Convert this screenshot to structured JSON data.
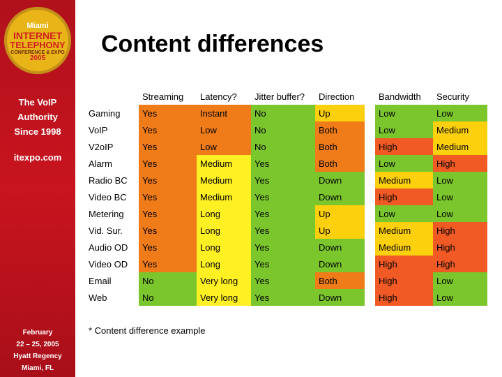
{
  "sidebar": {
    "logo": {
      "lines": [
        "Miami",
        "INTERNET",
        "TELEPHONY",
        "CONFERENCE & EXPO",
        "2005"
      ]
    },
    "tagline": [
      "The VoIP",
      "Authority",
      "Since 1998"
    ],
    "url": "itexpo.com",
    "event": [
      "February",
      "22 – 25, 2005",
      "Hyatt Regency",
      "Miami, FL"
    ]
  },
  "title": "Content differences",
  "table": {
    "columns": [
      "",
      "Streaming",
      "Latency?",
      "Jitter buffer?",
      "Direction",
      "",
      "Bandwidth",
      "Security"
    ],
    "rows": [
      {
        "name": "Gaming",
        "cells": [
          [
            "Yes",
            "o"
          ],
          [
            "Instant",
            "o"
          ],
          [
            "No",
            "g"
          ],
          [
            "Up",
            "a"
          ],
          [
            "Low",
            "g"
          ],
          [
            "Low",
            "g"
          ]
        ]
      },
      {
        "name": "VoIP",
        "cells": [
          [
            "Yes",
            "o"
          ],
          [
            "Low",
            "o"
          ],
          [
            "No",
            "g"
          ],
          [
            "Both",
            "o"
          ],
          [
            "Low",
            "g"
          ],
          [
            "Medium",
            "a"
          ]
        ]
      },
      {
        "name": "V2oIP",
        "cells": [
          [
            "Yes",
            "o"
          ],
          [
            "Low",
            "o"
          ],
          [
            "No",
            "g"
          ],
          [
            "Both",
            "o"
          ],
          [
            "High",
            "r"
          ],
          [
            "Medium",
            "a"
          ]
        ]
      },
      {
        "name": "Alarm",
        "cells": [
          [
            "Yes",
            "o"
          ],
          [
            "Medium",
            "y"
          ],
          [
            "Yes",
            "g"
          ],
          [
            "Both",
            "o"
          ],
          [
            "Low",
            "g"
          ],
          [
            "High",
            "r"
          ]
        ]
      },
      {
        "name": "Radio BC",
        "cells": [
          [
            "Yes",
            "o"
          ],
          [
            "Medium",
            "y"
          ],
          [
            "Yes",
            "g"
          ],
          [
            "Down",
            "g"
          ],
          [
            "Medium",
            "a"
          ],
          [
            "Low",
            "g"
          ]
        ]
      },
      {
        "name": "Video BC",
        "cells": [
          [
            "Yes",
            "o"
          ],
          [
            "Medium",
            "y"
          ],
          [
            "Yes",
            "g"
          ],
          [
            "Down",
            "g"
          ],
          [
            "High",
            "r"
          ],
          [
            "Low",
            "g"
          ]
        ]
      },
      {
        "name": "Metering",
        "cells": [
          [
            "Yes",
            "o"
          ],
          [
            "Long",
            "y"
          ],
          [
            "Yes",
            "g"
          ],
          [
            "Up",
            "a"
          ],
          [
            "Low",
            "g"
          ],
          [
            "Low",
            "g"
          ]
        ]
      },
      {
        "name": "Vid. Sur.",
        "cells": [
          [
            "Yes",
            "o"
          ],
          [
            "Long",
            "y"
          ],
          [
            "Yes",
            "g"
          ],
          [
            "Up",
            "a"
          ],
          [
            "Medium",
            "a"
          ],
          [
            "High",
            "r"
          ]
        ]
      },
      {
        "name": "Audio OD",
        "cells": [
          [
            "Yes",
            "o"
          ],
          [
            "Long",
            "y"
          ],
          [
            "Yes",
            "g"
          ],
          [
            "Down",
            "g"
          ],
          [
            "Medium",
            "a"
          ],
          [
            "High",
            "r"
          ]
        ]
      },
      {
        "name": "Video OD",
        "cells": [
          [
            "Yes",
            "o"
          ],
          [
            "Long",
            "y"
          ],
          [
            "Yes",
            "g"
          ],
          [
            "Down",
            "g"
          ],
          [
            "High",
            "r"
          ],
          [
            "High",
            "r"
          ]
        ]
      },
      {
        "name": "Email",
        "cells": [
          [
            "No",
            "g"
          ],
          [
            "Very long",
            "y"
          ],
          [
            "Yes",
            "g"
          ],
          [
            "Both",
            "o"
          ],
          [
            "High",
            "r"
          ],
          [
            "Low",
            "g"
          ]
        ]
      },
      {
        "name": "Web",
        "cells": [
          [
            "No",
            "g"
          ],
          [
            "Very long",
            "y"
          ],
          [
            "Yes",
            "g"
          ],
          [
            "Down",
            "g"
          ],
          [
            "High",
            "r"
          ],
          [
            "Low",
            "g"
          ]
        ]
      }
    ]
  },
  "footnote": "* Content difference example",
  "colors": {
    "g": "#7bc62d",
    "o": "#f07b19",
    "y": "#fff024",
    "a": "#fcd00c",
    "r": "#f15a25"
  }
}
